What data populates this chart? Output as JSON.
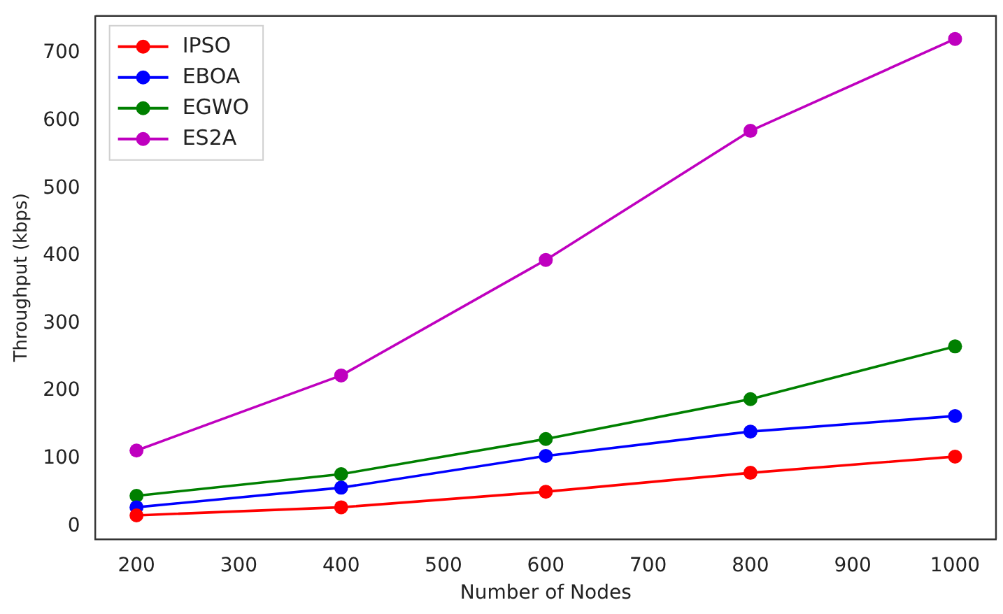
{
  "chart_data": {
    "type": "line",
    "xlabel": "Number of Nodes",
    "ylabel": "Throughput (kbps)",
    "x": [
      200,
      400,
      600,
      800,
      1000
    ],
    "series": [
      {
        "name": "IPSO",
        "color": "#ff0000",
        "values": [
          16,
          28,
          51,
          79,
          103
        ]
      },
      {
        "name": "EBOA",
        "color": "#0000ff",
        "values": [
          28,
          57,
          104,
          140,
          163
        ]
      },
      {
        "name": "EGWO",
        "color": "#008000",
        "values": [
          45,
          77,
          129,
          188,
          266
        ]
      },
      {
        "name": "ES2A",
        "color": "#bf00bf",
        "values": [
          112,
          223,
          394,
          585,
          721
        ]
      }
    ],
    "xlim": [
      160,
      1040
    ],
    "xticks": [
      200,
      300,
      400,
      500,
      600,
      700,
      800,
      900,
      1000
    ],
    "ylim": [
      -19,
      755
    ],
    "yticks": [
      0,
      100,
      200,
      300,
      400,
      500,
      600,
      700
    ],
    "grid": false,
    "legend": "top left",
    "marker": "circle",
    "line_style": "solid"
  }
}
